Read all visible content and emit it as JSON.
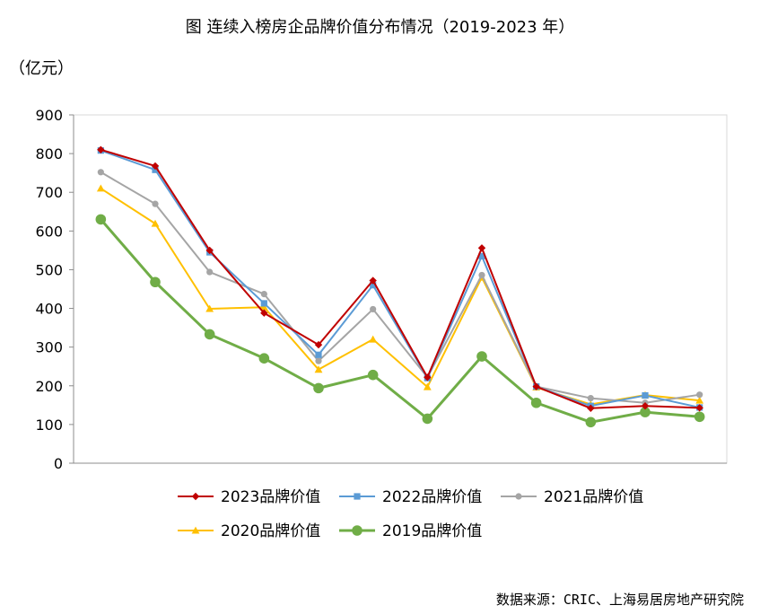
{
  "title": "图 连续入榜房企品牌价值分布情况（2019-2023 年）",
  "unit_label": "（亿元）",
  "source": "数据来源：CRIC、上海易居房地产研究院",
  "chart_data": {
    "type": "line",
    "x": [
      1,
      2,
      3,
      4,
      5,
      6,
      7,
      8,
      9,
      10,
      11,
      12
    ],
    "xlabel": "",
    "ylabel": "（亿元）",
    "ylim": [
      0,
      900
    ],
    "yticks": [
      0,
      100,
      200,
      300,
      400,
      500,
      600,
      700,
      800,
      900
    ],
    "grid": false,
    "legend_position": "bottom",
    "series": [
      {
        "name": "2023品牌价值",
        "color": "#c00000",
        "marker": "diamond",
        "values": [
          810,
          768,
          550,
          388,
          306,
          472,
          222,
          556,
          198,
          142,
          148,
          143
        ]
      },
      {
        "name": "2022品牌价值",
        "color": "#5b9bd5",
        "marker": "square",
        "values": [
          808,
          758,
          545,
          413,
          280,
          460,
          220,
          535,
          198,
          148,
          175,
          144
        ]
      },
      {
        "name": "2021品牌价值",
        "color": "#a5a5a5",
        "marker": "circle",
        "values": [
          752,
          670,
          494,
          437,
          264,
          398,
          222,
          486,
          198,
          168,
          156,
          177
        ]
      },
      {
        "name": "2020品牌价值",
        "color": "#ffc000",
        "marker": "triangle",
        "values": [
          710,
          619,
          399,
          403,
          242,
          320,
          197,
          480,
          196,
          152,
          176,
          162
        ]
      },
      {
        "name": "2019品牌价值",
        "color": "#70ad47",
        "marker": "bigcircle",
        "values": [
          630,
          468,
          333,
          271,
          194,
          228,
          115,
          276,
          156,
          106,
          132,
          120
        ]
      }
    ]
  }
}
